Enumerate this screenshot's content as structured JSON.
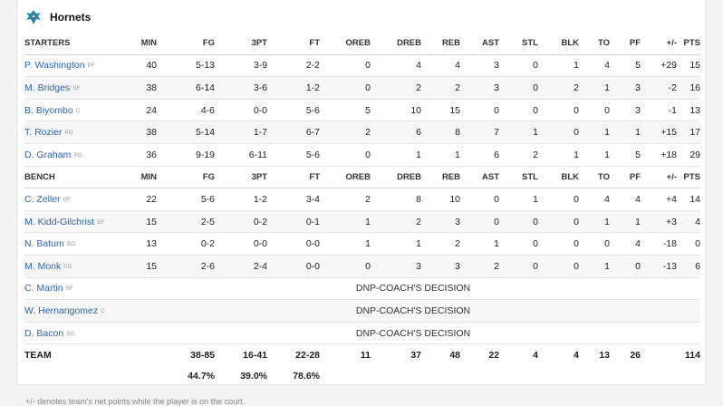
{
  "team": {
    "name": "Hornets",
    "logo_icon": "hornets-logo-icon",
    "accent": "#1d8cab"
  },
  "columns": [
    "MIN",
    "FG",
    "3PT",
    "FT",
    "OREB",
    "DREB",
    "REB",
    "AST",
    "STL",
    "BLK",
    "TO",
    "PF",
    "+/-",
    "PTS"
  ],
  "starters": {
    "label": "STARTERS",
    "players": [
      {
        "name": "P. Washington",
        "pos": "PF",
        "stats": [
          "40",
          "5-13",
          "3-9",
          "2-2",
          "0",
          "4",
          "4",
          "3",
          "0",
          "1",
          "4",
          "5",
          "+29",
          "15"
        ]
      },
      {
        "name": "M. Bridges",
        "pos": "SF",
        "stats": [
          "38",
          "6-14",
          "3-6",
          "1-2",
          "0",
          "2",
          "2",
          "3",
          "0",
          "2",
          "1",
          "3",
          "-2",
          "16"
        ]
      },
      {
        "name": "B. Biyombo",
        "pos": "C",
        "stats": [
          "24",
          "4-6",
          "0-0",
          "5-6",
          "5",
          "10",
          "15",
          "0",
          "0",
          "0",
          "0",
          "3",
          "-1",
          "13"
        ]
      },
      {
        "name": "T. Rozier",
        "pos": "PG",
        "stats": [
          "38",
          "5-14",
          "1-7",
          "6-7",
          "2",
          "6",
          "8",
          "7",
          "1",
          "0",
          "1",
          "1",
          "+15",
          "17"
        ]
      },
      {
        "name": "D. Graham",
        "pos": "PG",
        "stats": [
          "36",
          "9-19",
          "6-11",
          "5-6",
          "0",
          "1",
          "1",
          "6",
          "2",
          "1",
          "1",
          "5",
          "+18",
          "29"
        ]
      }
    ]
  },
  "bench": {
    "label": "BENCH",
    "players": [
      {
        "name": "C. Zeller",
        "pos": "PF",
        "stats": [
          "22",
          "5-6",
          "1-2",
          "3-4",
          "2",
          "8",
          "10",
          "0",
          "1",
          "0",
          "4",
          "4",
          "+4",
          "14"
        ]
      },
      {
        "name": "M. Kidd-Gilchrist",
        "pos": "SF",
        "stats": [
          "15",
          "2-5",
          "0-2",
          "0-1",
          "1",
          "2",
          "3",
          "0",
          "0",
          "0",
          "1",
          "1",
          "+3",
          "4"
        ]
      },
      {
        "name": "N. Batum",
        "pos": "SG",
        "stats": [
          "13",
          "0-2",
          "0-0",
          "0-0",
          "1",
          "1",
          "2",
          "1",
          "0",
          "0",
          "0",
          "4",
          "-18",
          "0"
        ]
      },
      {
        "name": "M. Monk",
        "pos": "SG",
        "stats": [
          "15",
          "2-6",
          "2-4",
          "0-0",
          "0",
          "3",
          "3",
          "2",
          "0",
          "0",
          "1",
          "0",
          "-13",
          "6"
        ]
      }
    ],
    "dnp": [
      {
        "name": "C. Martin",
        "pos": "SF",
        "note": "DNP-COACH'S DECISION"
      },
      {
        "name": "W. Hernangomez",
        "pos": "C",
        "note": "DNP-COACH'S DECISION"
      },
      {
        "name": "D. Bacon",
        "pos": "SG",
        "note": "DNP-COACH'S DECISION"
      }
    ]
  },
  "totals": {
    "label": "TEAM",
    "stats": [
      "",
      "38-85",
      "16-41",
      "22-28",
      "11",
      "37",
      "48",
      "22",
      "4",
      "4",
      "13",
      "26",
      "",
      "114"
    ],
    "pct": [
      "",
      "44.7%",
      "39.0%",
      "78.6%",
      "",
      "",
      "",
      "",
      "",
      "",
      "",
      "",
      "",
      ""
    ]
  },
  "footnote": "+/- denotes team's net points while the player is on the court."
}
